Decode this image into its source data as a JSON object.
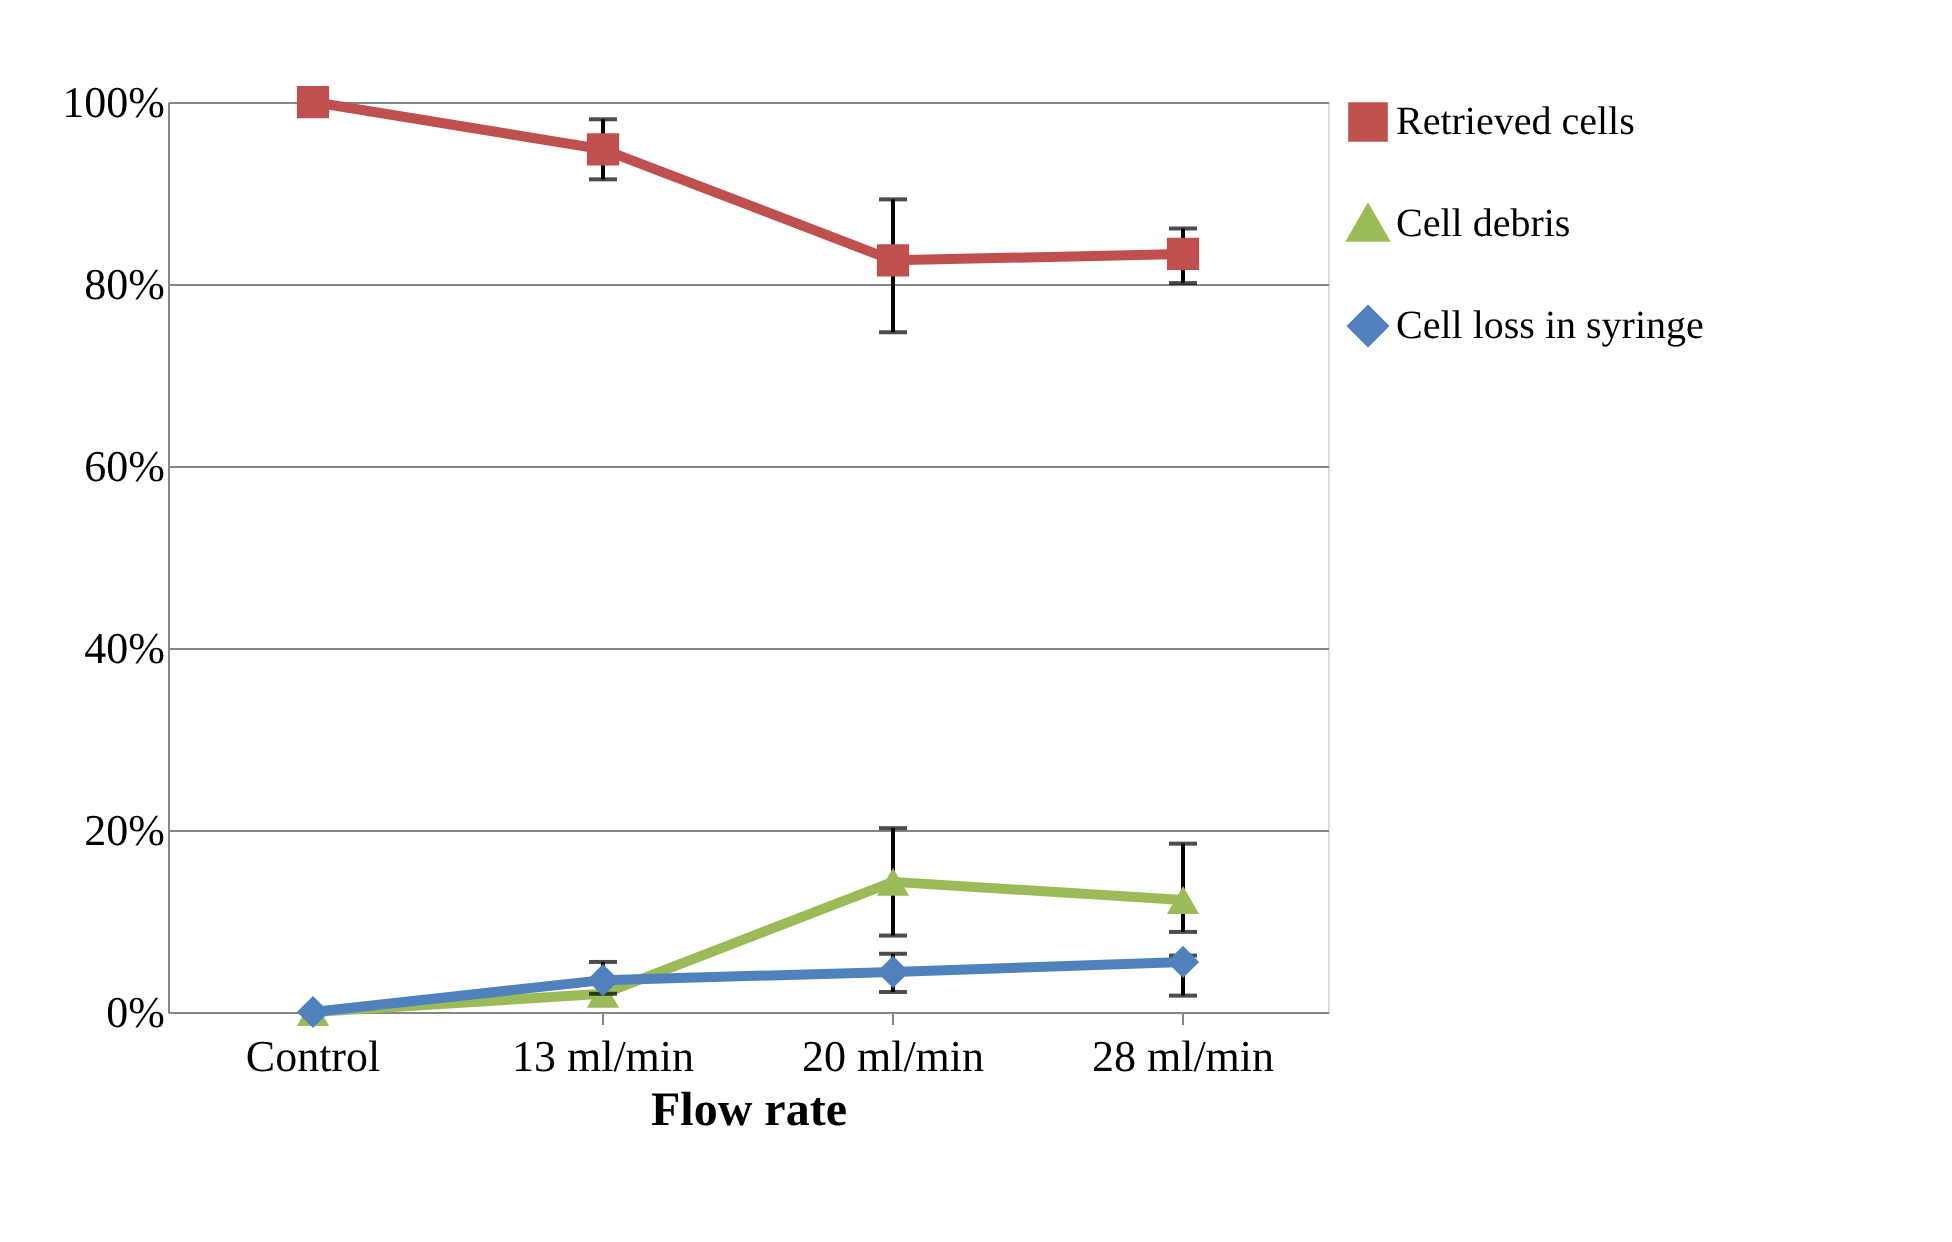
{
  "chart_data": {
    "type": "line",
    "xlabel": "Flow rate",
    "categories": [
      "Control",
      "13 ml/min",
      "20 ml/min",
      "28 ml/min"
    ],
    "series": [
      {
        "name": "Retrieved cells",
        "color": "#c0504d",
        "marker": "square",
        "values": [
          100,
          94.8,
          82.6,
          83.3
        ],
        "errors": [
          null,
          [
            91.5,
            98.1
          ],
          [
            74.7,
            89.3
          ],
          [
            80.1,
            86.1
          ]
        ]
      },
      {
        "name": "Cell debris",
        "color": "#9bbb59",
        "marker": "triangle",
        "values": [
          0,
          2,
          14.3,
          12.3
        ],
        "errors": [
          null,
          null,
          [
            8.4,
            20.2
          ],
          [
            8.8,
            18.5
          ]
        ]
      },
      {
        "name": "Cell loss in syringe",
        "color": "#4f81bd",
        "marker": "diamond",
        "values": [
          0,
          3.5,
          4.4,
          5.5
        ],
        "errors": [
          null,
          [
            2,
            5.5
          ],
          [
            2.2,
            6.4
          ],
          [
            1.8,
            6.2
          ]
        ]
      }
    ],
    "ylim": [
      0,
      100
    ],
    "yticks": [
      {
        "value": 0,
        "label": "0%"
      },
      {
        "value": 20,
        "label": "20%"
      },
      {
        "value": 40,
        "label": "40%"
      },
      {
        "value": 60,
        "label": "60%"
      },
      {
        "value": 80,
        "label": "80%"
      },
      {
        "value": 100,
        "label": "100%"
      }
    ],
    "grid": "y",
    "legend": "right",
    "line_style": "solid"
  }
}
